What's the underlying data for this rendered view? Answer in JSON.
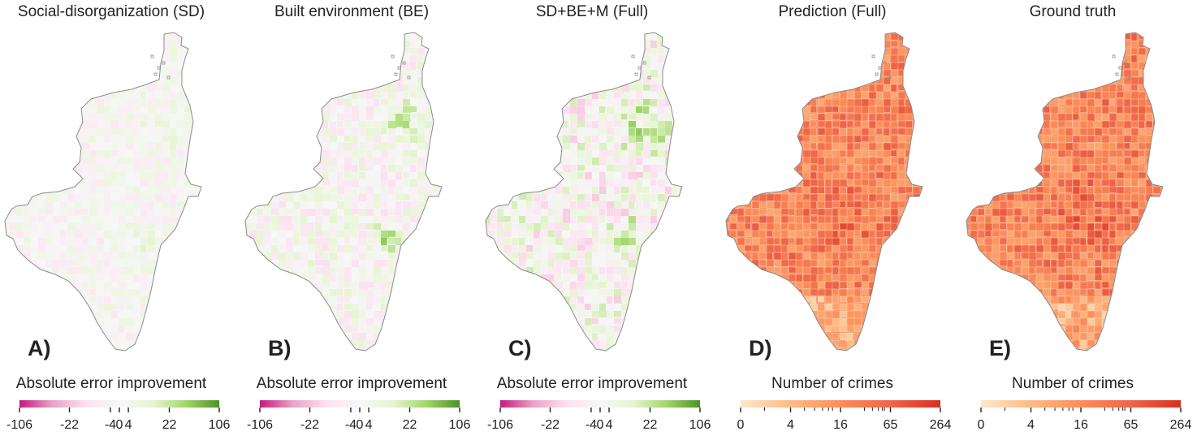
{
  "colors": {
    "diverging": [
      "#c51b7d",
      "#e9a3c9",
      "#fde0ef",
      "#f7f7f7",
      "#e6f5d0",
      "#a1d76a",
      "#4d9221"
    ],
    "sequential": [
      "#fee8c8",
      "#fdbb84",
      "#fc8d59",
      "#ef6548",
      "#d7301f"
    ],
    "outline": "#8c8c8c"
  },
  "panels": [
    {
      "title": "Social-disorganization (SD)",
      "letter": "A)",
      "colorbar_label": "Absolute error improvement",
      "scale": "diverging",
      "ticks": [
        "-106",
        "-22",
        "-4",
        "0",
        "4",
        "22",
        "106"
      ],
      "intensity": 0.35
    },
    {
      "title": "Built environment (BE)",
      "letter": "B)",
      "colorbar_label": "Absolute error improvement",
      "scale": "diverging",
      "ticks": [
        "-106",
        "-22",
        "-4",
        "0",
        "4",
        "22",
        "106"
      ],
      "intensity": 0.55
    },
    {
      "title": "SD+BE+M (Full)",
      "letter": "C)",
      "colorbar_label": "Absolute error improvement",
      "scale": "diverging",
      "ticks": [
        "-106",
        "-22",
        "-4",
        "0",
        "4",
        "22",
        "106"
      ],
      "intensity": 0.75
    },
    {
      "title": "Prediction (Full)",
      "letter": "D)",
      "colorbar_label": "Number of crimes",
      "scale": "sequential",
      "ticks": [
        "0",
        "4",
        "16",
        "65",
        "264"
      ],
      "intensity": 0.6
    },
    {
      "title": "Ground truth",
      "letter": "E)",
      "colorbar_label": "Number of crimes",
      "scale": "sequential",
      "ticks": [
        "0",
        "4",
        "16",
        "65",
        "264"
      ],
      "intensity": 0.7
    }
  ]
}
